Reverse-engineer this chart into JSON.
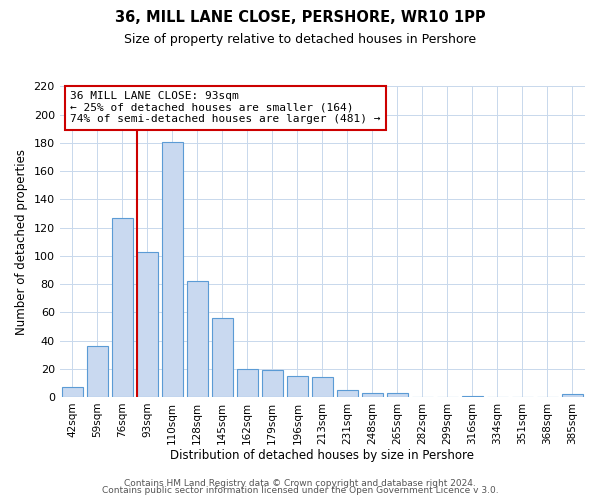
{
  "title": "36, MILL LANE CLOSE, PERSHORE, WR10 1PP",
  "subtitle": "Size of property relative to detached houses in Pershore",
  "xlabel": "Distribution of detached houses by size in Pershore",
  "ylabel": "Number of detached properties",
  "bar_labels": [
    "42sqm",
    "59sqm",
    "76sqm",
    "93sqm",
    "110sqm",
    "128sqm",
    "145sqm",
    "162sqm",
    "179sqm",
    "196sqm",
    "213sqm",
    "231sqm",
    "248sqm",
    "265sqm",
    "282sqm",
    "299sqm",
    "316sqm",
    "334sqm",
    "351sqm",
    "368sqm",
    "385sqm"
  ],
  "bar_values": [
    7,
    36,
    127,
    103,
    181,
    82,
    56,
    20,
    19,
    15,
    14,
    5,
    3,
    3,
    0,
    0,
    1,
    0,
    0,
    0,
    2
  ],
  "bar_color": "#c9d9f0",
  "bar_edge_color": "#5b9bd5",
  "vline_color": "#cc0000",
  "vline_index": 3,
  "ylim": [
    0,
    220
  ],
  "yticks": [
    0,
    20,
    40,
    60,
    80,
    100,
    120,
    140,
    160,
    180,
    200,
    220
  ],
  "annotation_title": "36 MILL LANE CLOSE: 93sqm",
  "annotation_line1": "← 25% of detached houses are smaller (164)",
  "annotation_line2": "74% of semi-detached houses are larger (481) →",
  "footer_line1": "Contains HM Land Registry data © Crown copyright and database right 2024.",
  "footer_line2": "Contains public sector information licensed under the Open Government Licence v 3.0.",
  "background_color": "#ffffff",
  "grid_color": "#c8d8ec"
}
